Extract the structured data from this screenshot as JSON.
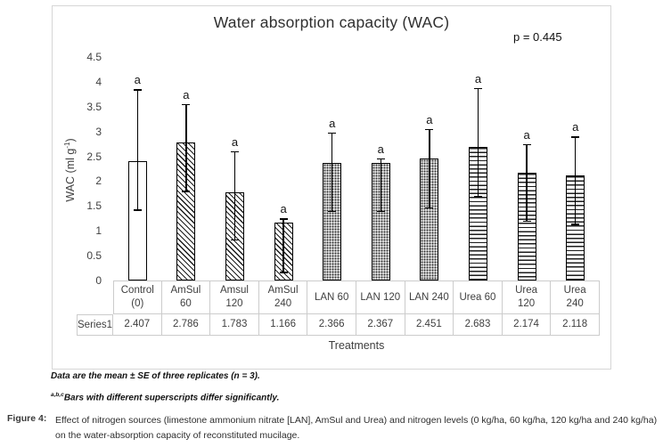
{
  "chart": {
    "title": "Water absorption capacity (WAC)",
    "p_value_label": "p = 0.445",
    "y_axis_title_prefix": "WAC (ml g",
    "y_axis_title_superscript": "-1",
    "y_axis_title_suffix": ")",
    "x_axis_title": "Treatments"
  },
  "chart_data": {
    "type": "bar",
    "title": "Water absorption capacity (WAC)",
    "annotation": "p = 0.445",
    "xlabel": "Treatments",
    "ylabel": "WAC (ml g-1)",
    "ylim": [
      0,
      4.5
    ],
    "ytick_labels": [
      "0",
      "0.5",
      "1",
      "1.5",
      "2",
      "2.5",
      "3",
      "3.5",
      "4",
      "4.5"
    ],
    "grid": false,
    "legend": "none (data table below axis)",
    "categories": [
      "Control (0)",
      "AmSul 60",
      "Amsul 120",
      "AmSul 240",
      "LAN 60",
      "LAN 120",
      "LAN 240",
      "Urea 60",
      "Urea 120",
      "Urea 240"
    ],
    "category_lines": [
      [
        "Control",
        "(0)"
      ],
      [
        "AmSul",
        "60"
      ],
      [
        "Amsul",
        "120"
      ],
      [
        "AmSul",
        "240"
      ],
      [
        "LAN 60"
      ],
      [
        "LAN 120"
      ],
      [
        "LAN 240"
      ],
      [
        "Urea 60"
      ],
      [
        "Urea",
        "120"
      ],
      [
        "Urea",
        "240"
      ]
    ],
    "series": [
      {
        "name": "Series1",
        "values": [
          2.407,
          2.786,
          1.783,
          1.166,
          2.366,
          2.367,
          2.451,
          2.683,
          2.174,
          2.118
        ]
      }
    ],
    "display_values": [
      "2.407",
      "2.786",
      "1.783",
      "1.166",
      "2.366",
      "2.367",
      "2.451",
      "2.683",
      "2.174",
      "2.118"
    ],
    "error_bars": [
      {
        "low": 1.4,
        "high": 3.85
      },
      {
        "low": 1.78,
        "high": 3.55
      },
      {
        "low": 0.8,
        "high": 2.6
      },
      {
        "low": 0.15,
        "high": 1.25
      },
      {
        "low": 1.38,
        "high": 2.98
      },
      {
        "low": 1.38,
        "high": 2.46
      },
      {
        "low": 1.45,
        "high": 3.05
      },
      {
        "low": 1.67,
        "high": 3.88
      },
      {
        "low": 1.18,
        "high": 2.75
      },
      {
        "low": 1.12,
        "high": 2.9
      }
    ],
    "sig_letters": [
      "a",
      "a",
      "a",
      "a",
      "a",
      "a",
      "a",
      "a",
      "a",
      "a"
    ],
    "bar_patterns": [
      "solid-white",
      "diag-hatch",
      "diag-hatch",
      "diag-hatch",
      "dot-gray",
      "dot-gray",
      "dot-gray",
      "h-lines",
      "h-lines",
      "h-lines"
    ]
  },
  "captions": {
    "note1": "Data are the mean ± SE of three replicates (n = 3).",
    "note2_superscript": "a,b,c",
    "note2": "Bars with different superscripts differ significantly.",
    "figure_label": "Figure 4:",
    "figure_text": "Effect of nitrogen sources (limestone ammonium nitrate [LAN], AmSul and Urea) and nitrogen levels (0 kg/ha, 60 kg/ha, 120 kg/ha and 240 kg/ha) on the water-absorption capacity of reconstituted mucilage."
  },
  "colors": {
    "frame_border": "#d6d6d6",
    "table_border": "#cccccc",
    "axis_text": "#3f3f3f",
    "bar_border": "#000000",
    "dot_pattern_background": "#b8b8b8",
    "text": "#1a1a1a"
  }
}
